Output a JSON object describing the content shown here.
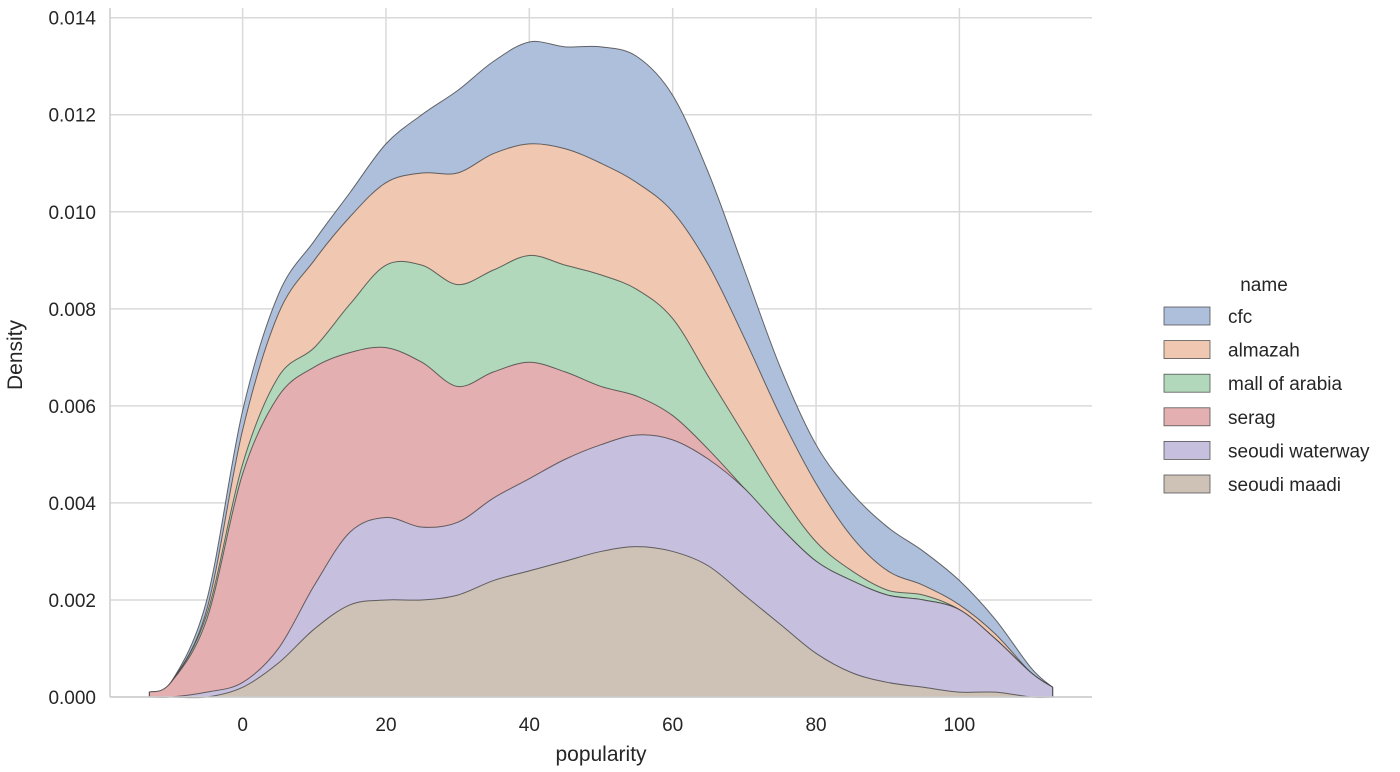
{
  "chart_data": {
    "type": "area",
    "title": "",
    "xlabel": "popularity",
    "ylabel": "Density",
    "xlim": [
      -18.5,
      118.5
    ],
    "ylim": [
      0,
      0.0142
    ],
    "xticks": [
      0,
      20,
      40,
      60,
      80,
      100
    ],
    "xtick_labels": [
      "0",
      "20",
      "40",
      "60",
      "80",
      "100"
    ],
    "yticks": [
      0,
      0.002,
      0.004,
      0.006,
      0.008,
      0.01,
      0.012,
      0.014
    ],
    "ytick_labels": [
      "0.000",
      "0.002",
      "0.004",
      "0.006",
      "0.008",
      "0.010",
      "0.012",
      "0.014"
    ],
    "grid": true,
    "stacked": true,
    "legend": {
      "title": "name",
      "position": "right"
    },
    "x": [
      -13,
      -10,
      -5,
      0,
      5,
      10,
      15,
      20,
      25,
      30,
      35,
      40,
      45,
      50,
      55,
      60,
      65,
      70,
      75,
      80,
      85,
      90,
      95,
      100,
      105,
      110,
      113
    ],
    "series": [
      {
        "name": "cfc",
        "color": "#4c72b0",
        "cumulative": [
          0.0001,
          0.0003,
          0.002,
          0.0059,
          0.0083,
          0.0094,
          0.0104,
          0.0114,
          0.012,
          0.0125,
          0.0131,
          0.0135,
          0.0134,
          0.0134,
          0.0132,
          0.0124,
          0.0108,
          0.0088,
          0.0068,
          0.0052,
          0.0042,
          0.0035,
          0.003,
          0.0024,
          0.0016,
          0.0006,
          0.0002
        ]
      },
      {
        "name": "almazah",
        "color": "#dd8452",
        "cumulative": [
          0.0001,
          0.0003,
          0.0018,
          0.0055,
          0.0079,
          0.009,
          0.0099,
          0.0106,
          0.0108,
          0.0108,
          0.0112,
          0.0114,
          0.0113,
          0.011,
          0.0106,
          0.01,
          0.0089,
          0.0074,
          0.0058,
          0.0044,
          0.0033,
          0.0026,
          0.0023,
          0.0019,
          0.0013,
          0.0005,
          0.0002
        ]
      },
      {
        "name": "mall of arabia",
        "color": "#55a868",
        "cumulative": [
          0.0001,
          0.0003,
          0.0017,
          0.0048,
          0.0066,
          0.0072,
          0.0081,
          0.0089,
          0.0089,
          0.0085,
          0.0088,
          0.0091,
          0.0089,
          0.0087,
          0.0084,
          0.0078,
          0.0066,
          0.0054,
          0.0042,
          0.0032,
          0.0026,
          0.0022,
          0.0021,
          0.0018,
          0.0012,
          0.0005,
          0.0002
        ]
      },
      {
        "name": "serag",
        "color": "#c44e52",
        "cumulative": [
          0.0001,
          0.0003,
          0.0016,
          0.0046,
          0.0062,
          0.0068,
          0.0071,
          0.0072,
          0.0069,
          0.0064,
          0.0067,
          0.0069,
          0.0067,
          0.0064,
          0.0062,
          0.0058,
          0.0051,
          0.0043,
          0.0035,
          0.0028,
          0.0024,
          0.0021,
          0.002,
          0.0018,
          0.0012,
          0.0005,
          0.0002
        ]
      },
      {
        "name": "seoudi waterway",
        "color": "#8172b3",
        "cumulative": [
          0.0,
          0.0,
          0.0001,
          0.0003,
          0.001,
          0.0023,
          0.0034,
          0.0037,
          0.0035,
          0.0036,
          0.0041,
          0.0045,
          0.0049,
          0.0052,
          0.0054,
          0.0053,
          0.0049,
          0.0043,
          0.0035,
          0.0028,
          0.0024,
          0.0021,
          0.002,
          0.0018,
          0.0012,
          0.0005,
          0.0002
        ]
      },
      {
        "name": "seoudi maadi",
        "color": "#937860",
        "cumulative": [
          0.0,
          0.0,
          0.0,
          0.0002,
          0.0007,
          0.0014,
          0.0019,
          0.002,
          0.002,
          0.0021,
          0.0024,
          0.0026,
          0.0028,
          0.003,
          0.0031,
          0.003,
          0.0027,
          0.0021,
          0.0015,
          0.0009,
          0.0005,
          0.0003,
          0.0002,
          0.0001,
          0.0001,
          0.0,
          0.0
        ]
      }
    ]
  }
}
